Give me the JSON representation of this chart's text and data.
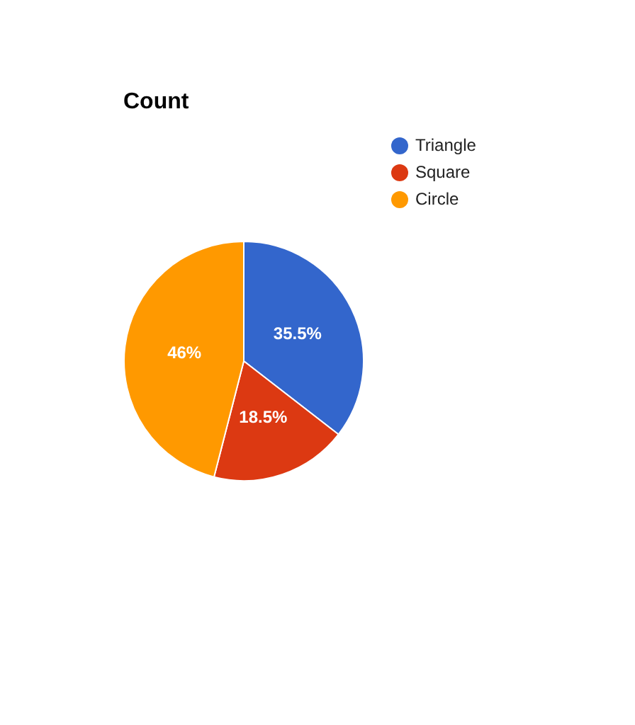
{
  "chart_data": {
    "type": "pie",
    "title": "Count",
    "categories": [
      "Triangle",
      "Square",
      "Circle"
    ],
    "values": [
      35.5,
      18.5,
      46
    ],
    "colors": [
      "#3366cc",
      "#dc3912",
      "#ff9900"
    ],
    "value_labels": [
      "35.5%",
      "18.5%",
      "46%"
    ],
    "legend": "top right"
  }
}
